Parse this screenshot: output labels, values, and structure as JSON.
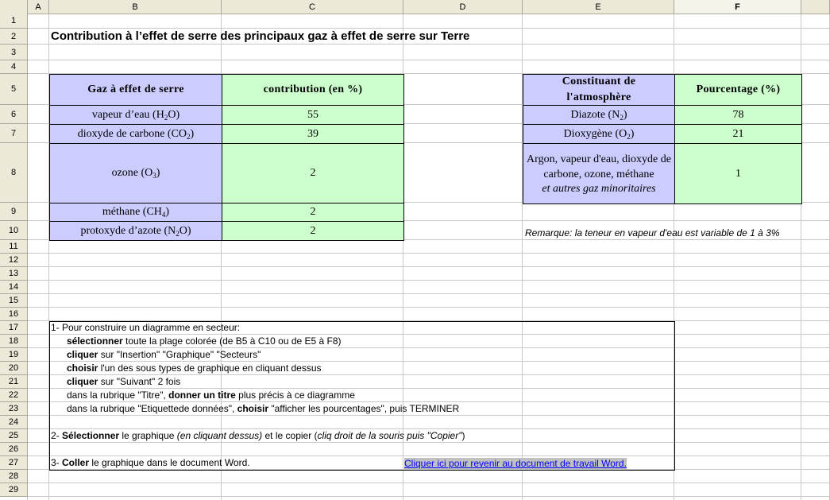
{
  "columns": [
    "A",
    "B",
    "C",
    "D",
    "E",
    "F"
  ],
  "rows": [
    "1",
    "2",
    "3",
    "4",
    "5",
    "6",
    "7",
    "8",
    "9",
    "10",
    "11",
    "12",
    "13",
    "14",
    "15",
    "16",
    "17",
    "18",
    "19",
    "20",
    "21",
    "22",
    "23",
    "24",
    "25",
    "26",
    "27",
    "28",
    "29"
  ],
  "title": "Contribution à l’effet de serre des principaux gaz à effet de serre sur Terre",
  "table1": {
    "header": [
      "Gaz à effet de serre",
      "contribution (en %)"
    ],
    "rows": [
      {
        "name": "vapeur d’eau (H",
        "sub": "2",
        "tail": "O)",
        "value": "55"
      },
      {
        "name": "dioxyde de carbone (CO",
        "sub": "2",
        "tail": ")",
        "value": "39"
      },
      {
        "name": "ozone (O",
        "sub": "3",
        "tail": ")",
        "value": "2"
      },
      {
        "name": "méthane (CH",
        "sub": "4",
        "tail": ")",
        "value": "2"
      },
      {
        "name": "protoxyde d’azote (N",
        "sub": "2",
        "tail": "O)",
        "value": "2"
      }
    ]
  },
  "table2": {
    "header": [
      "Constituant de l'atmosphère",
      "Pourcentage (%)"
    ],
    "rows": [
      {
        "name": "Diazote (N",
        "sub": "2",
        "tail": ")",
        "value": "78"
      },
      {
        "name": "Dioxygène (O",
        "sub": "2",
        "tail": ")",
        "value": "21"
      },
      {
        "name": "Argon, vapeur d'eau, dioxyde de carbone, ozone, méthane",
        "italic": "et autres gaz minoritaires",
        "value": "1"
      }
    ]
  },
  "remark": "Remarque: la teneur en vapeur d'eau est variable de 1 à 3%",
  "instructions": {
    "l17": "1- Pour construire un diagramme en secteur:",
    "l18b": "sélectionner",
    "l18": " toute la plage colorée (de B5 à C10 ou de E5 à F8)",
    "l19b": "cliquer",
    "l19": " sur \"Insertion\" \"Graphique\" \"Secteurs\"",
    "l20b": "choisir",
    "l20": " l'un des sous types de graphique en cliquant dessus",
    "l21b": "cliquer",
    "l21": " sur \"Suivant\" 2 fois",
    "l22a": "dans la rubrique \"Titre\", ",
    "l22b": "donner un titre",
    "l22": " plus précis à ce diagramme",
    "l23a": "dans la rubrique \"Etiquettede données\", ",
    "l23b": "choisir",
    "l23": " \"afficher les pourcentages\", puis TERMINER",
    "l25a": "2- ",
    "l25b": "Sélectionner",
    "l25c": " le graphique ",
    "l25i": "(en cliquant dessus)",
    "l25d": " et le copier (",
    "l25i2": "cliq droit de la souris puis \"Copier\"",
    "l25e": ")",
    "l27a": "3- ",
    "l27b": "Coller",
    "l27c": " le graphique dans le document Word.",
    "link": "Cliquer ici pour revenir au document de travail Word."
  },
  "colors": {
    "blue": "#ccccff",
    "green": "#ccffcc",
    "link": "#0000ff",
    "header": "#ece9d8"
  }
}
